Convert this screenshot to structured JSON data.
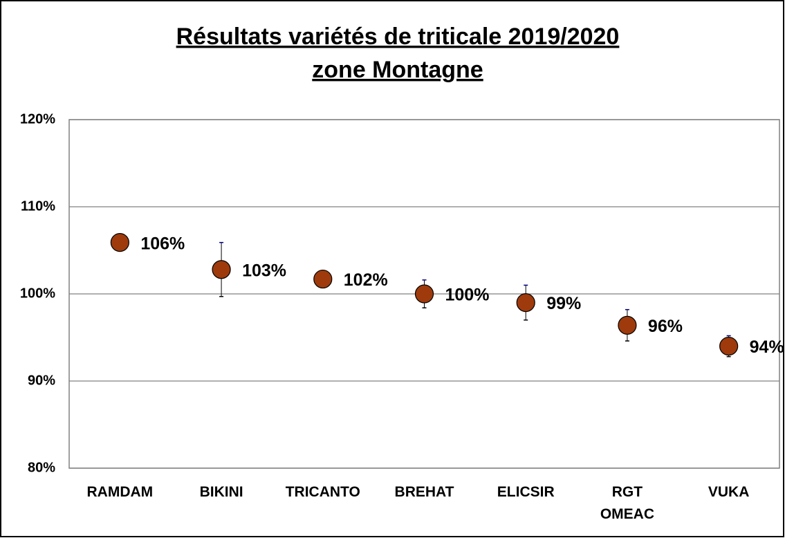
{
  "chart_data": {
    "type": "dot",
    "title": "Résultats variétés de triticale 2019/2020",
    "subtitle": "zone Montagne",
    "categories": [
      "RAMDAM",
      "BIKINI",
      "TRICANTO",
      "BREHAT",
      "ELICSIR",
      "RGT OMEAC",
      "VUKA"
    ],
    "values": [
      105.9,
      102.8,
      101.7,
      100.0,
      99.0,
      96.4,
      94.0
    ],
    "value_labels": [
      "106%",
      "103%",
      "102%",
      "100%",
      "99%",
      "96%",
      "94%"
    ],
    "errors": [
      null,
      3.1,
      null,
      1.6,
      2.0,
      1.8,
      1.2
    ],
    "color": "#9e3a0c",
    "ylim": [
      80,
      120
    ],
    "yticks": [
      {
        "value": 80,
        "label": "80%"
      },
      {
        "value": 90,
        "label": "90%"
      },
      {
        "value": 100,
        "label": "100%"
      },
      {
        "value": 110,
        "label": "110%"
      },
      {
        "value": 120,
        "label": "120%"
      }
    ],
    "grid": true
  }
}
